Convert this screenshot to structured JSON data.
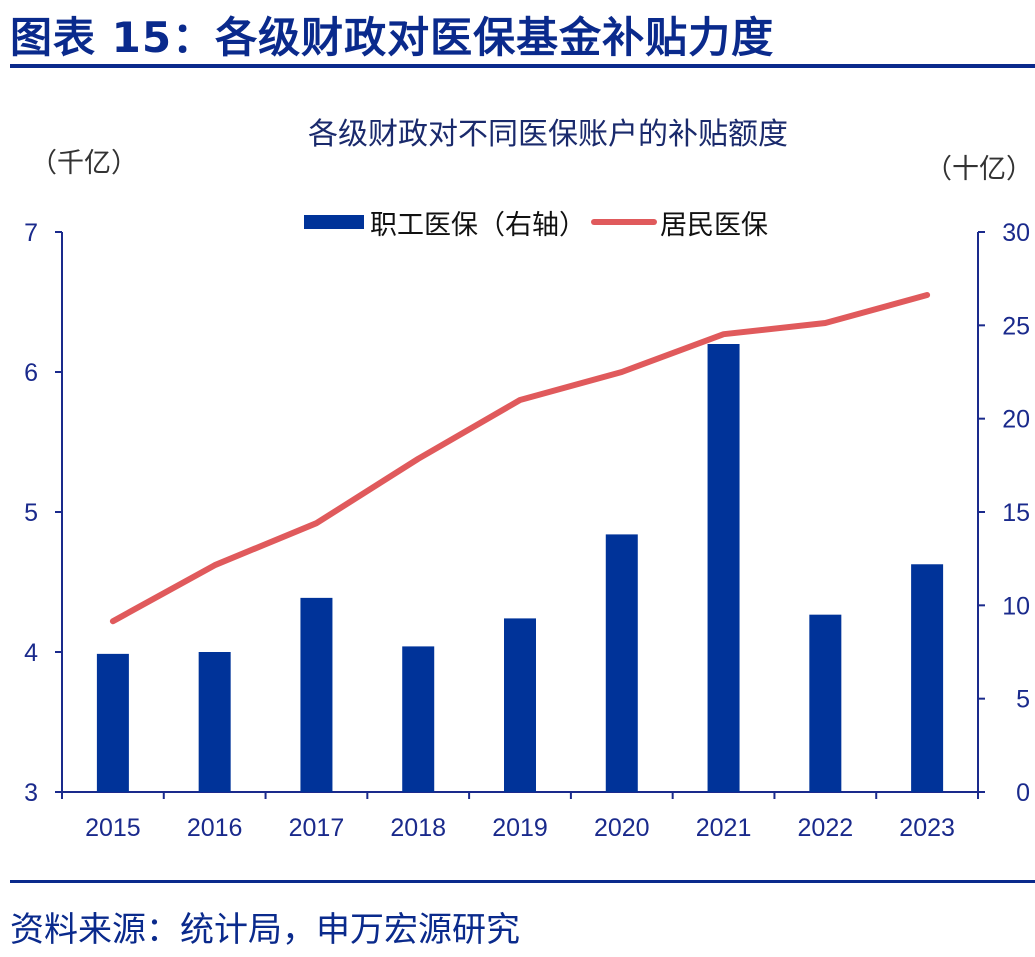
{
  "header": {
    "title": "图表 15：各级财政对医保基金补贴力度"
  },
  "footer": {
    "source": "资料来源：统计局，申万宏源研究"
  },
  "colors": {
    "accent": "#0A2A8C",
    "bar": "#003399",
    "line": "#E05A5C"
  },
  "chart_data": {
    "type": "bar",
    "title": "各级财政对不同医保账户的补贴额度",
    "categories": [
      "2015",
      "2016",
      "2017",
      "2018",
      "2019",
      "2020",
      "2021",
      "2022",
      "2023"
    ],
    "left_axis": {
      "unit": "（千亿）",
      "ylim": [
        3,
        7
      ],
      "ticks": [
        "3",
        "4",
        "5",
        "6",
        "7"
      ]
    },
    "right_axis": {
      "unit": "（十亿）",
      "ylim": [
        0,
        30
      ],
      "ticks": [
        "0",
        "5",
        "10",
        "15",
        "20",
        "25",
        "30"
      ]
    },
    "series": [
      {
        "name": "职工医保（右轴）",
        "type": "bar",
        "axis": "right",
        "values": [
          7.4,
          7.5,
          10.4,
          7.8,
          9.3,
          13.8,
          24.0,
          9.5,
          12.2
        ]
      },
      {
        "name": "居民医保",
        "type": "line",
        "axis": "left",
        "values": [
          4.22,
          4.62,
          4.92,
          5.38,
          5.8,
          6.0,
          6.27,
          6.35,
          6.55
        ]
      }
    ],
    "legend_position": "top-center",
    "grid": false
  }
}
